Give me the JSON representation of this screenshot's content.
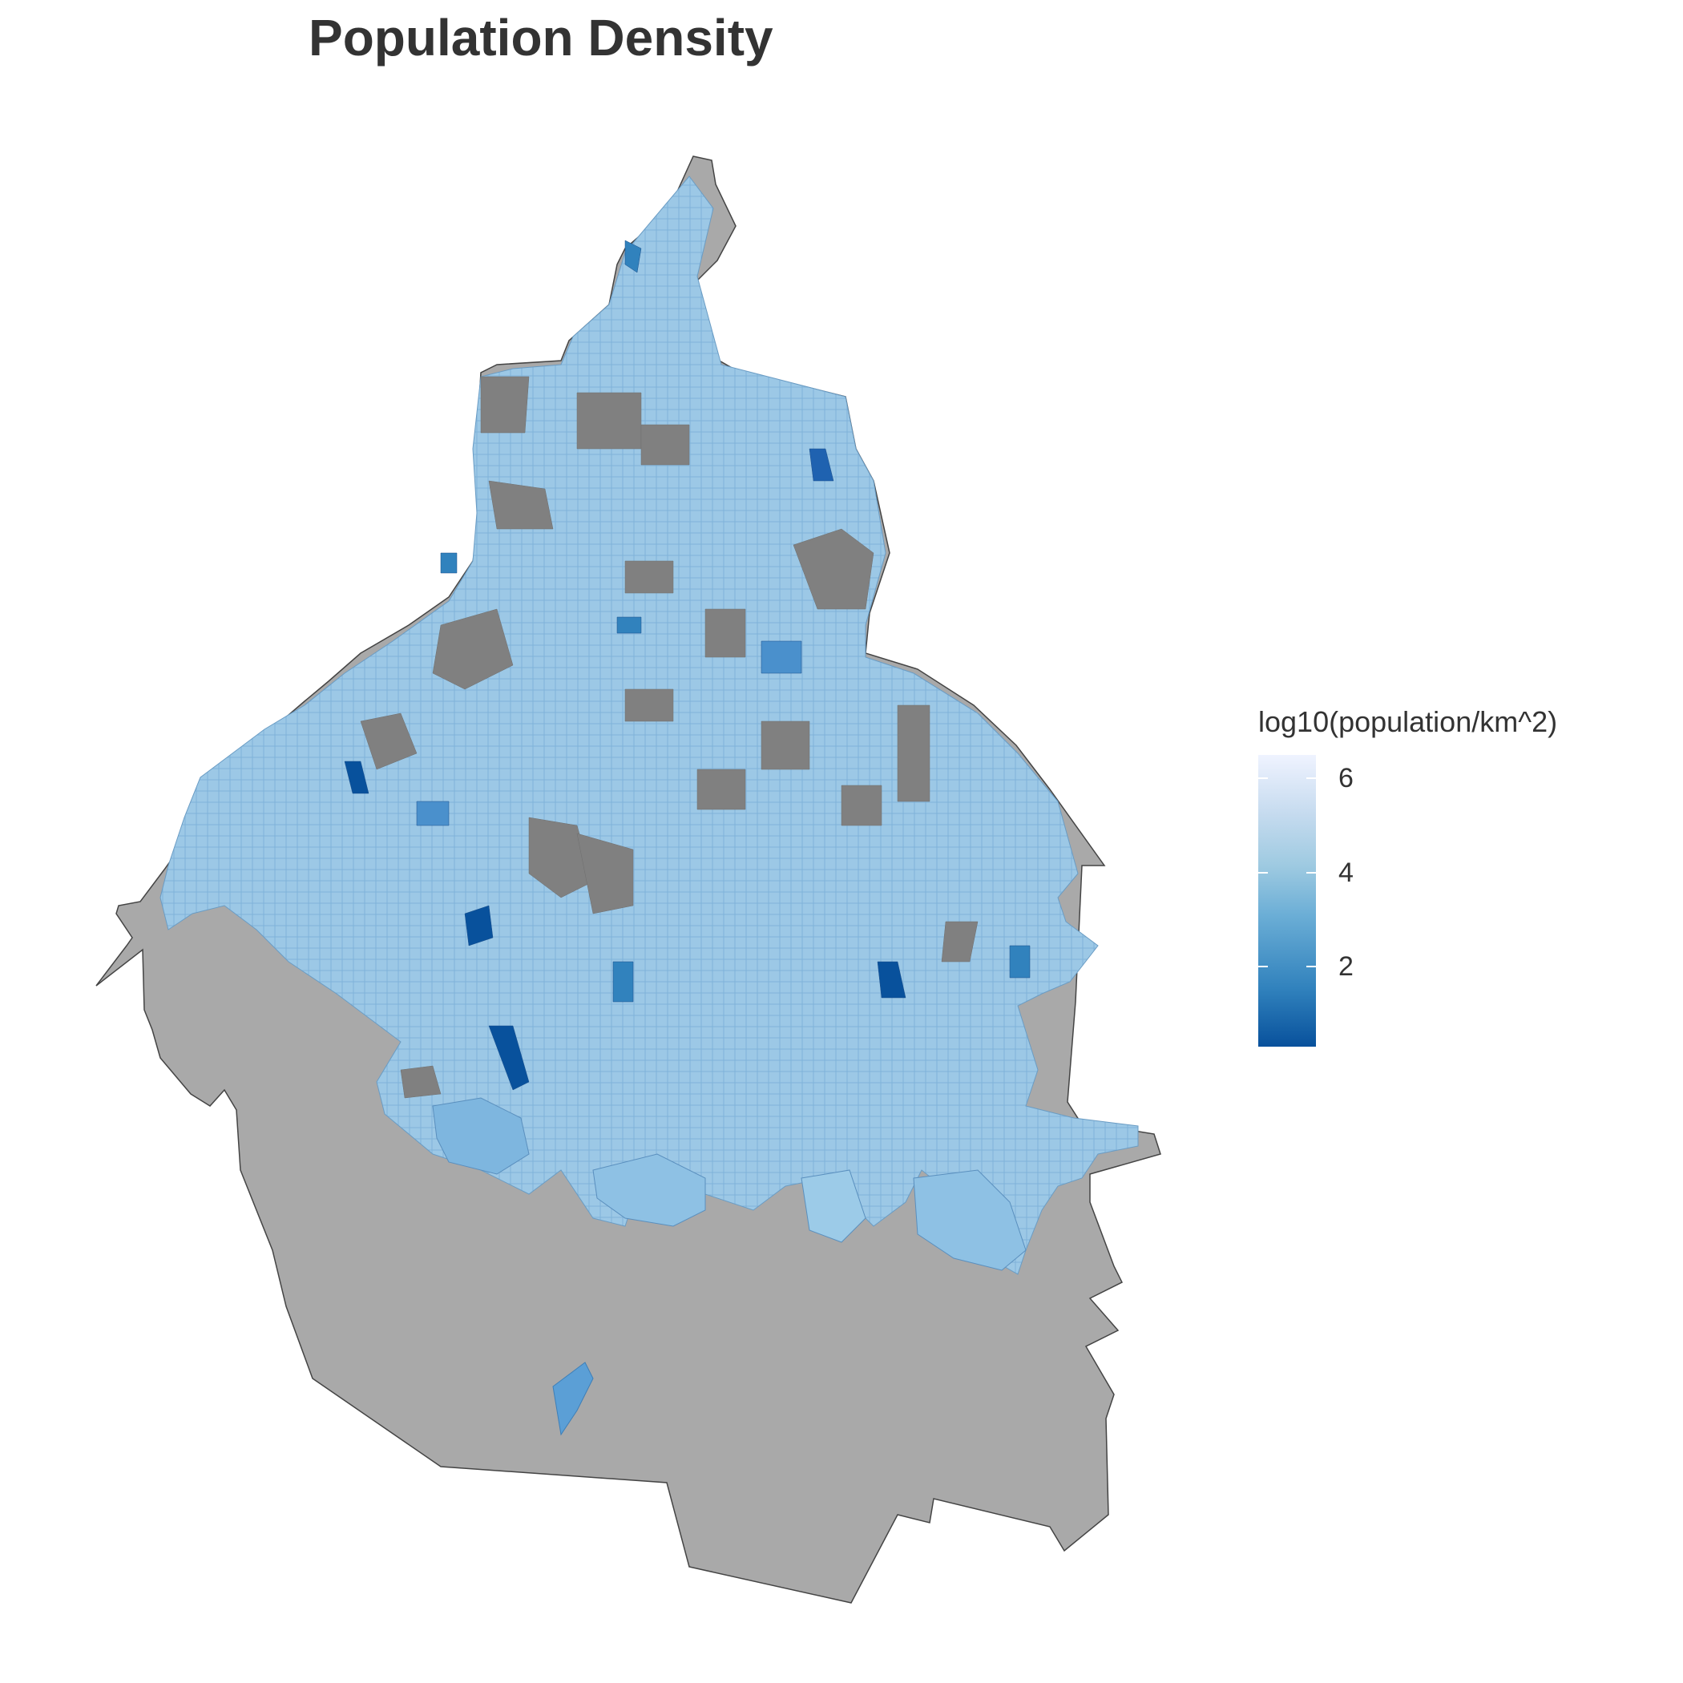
{
  "map": {
    "title": "Population Density",
    "base_fill": "#a9a9a9",
    "no_data_fill": "#808080",
    "boundary_color": "#444444"
  },
  "legend": {
    "title": "log10(population/km^2)",
    "min": 0.3,
    "max": 6.5,
    "ticks": [
      {
        "value": 2,
        "label": "2"
      },
      {
        "value": 4,
        "label": "4"
      },
      {
        "value": 6,
        "label": "6"
      }
    ],
    "colors": [
      "#08519c",
      "#3182bd",
      "#6baed6",
      "#9ecae1",
      "#c6dbef",
      "#eff3ff"
    ]
  }
}
